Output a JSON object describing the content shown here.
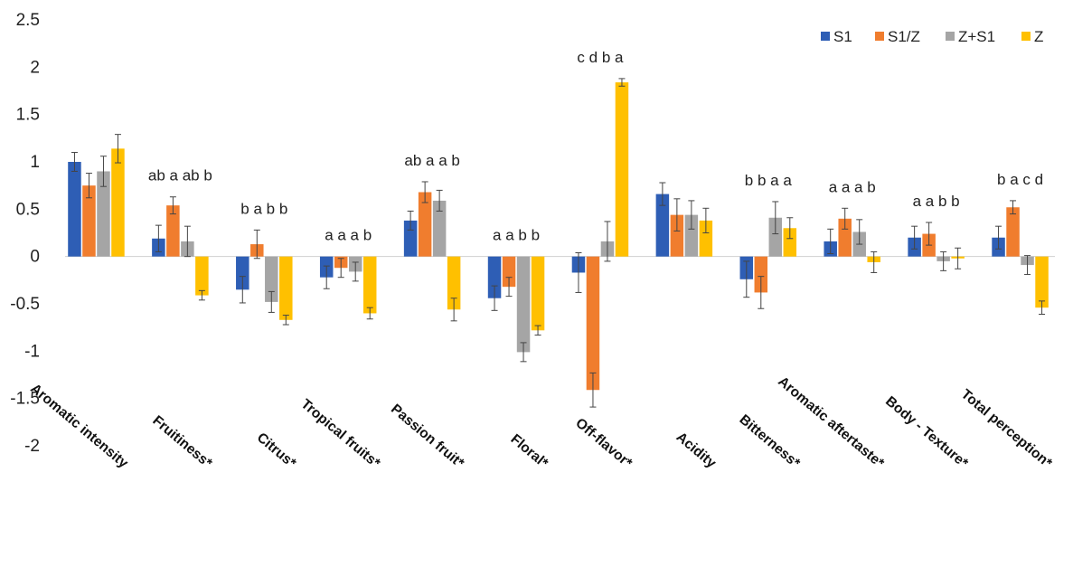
{
  "chart_data": {
    "type": "bar",
    "title": "",
    "xlabel": "",
    "ylabel": "",
    "ylim": [
      -2,
      2.5
    ],
    "yticks": [
      -2,
      -1.5,
      -1,
      -0.5,
      0,
      0.5,
      1,
      1.5,
      2,
      2.5
    ],
    "ytick_labels": [
      "-2",
      "-1.5",
      "-1",
      "-0.5",
      "0",
      "0.5",
      "1",
      "1.5",
      "2",
      "2.5"
    ],
    "grid": false,
    "legend_position": "top-right",
    "categories": [
      "Aromatic intensity",
      "Fruitiness*",
      "Citrus*",
      "Tropical fruits*",
      "Passion fruit*",
      "Floral*",
      "Off-flavor*",
      "Acidity",
      "Bitterness*",
      "Aromatic aftertaste*",
      "Body - Texture*",
      "Total perception*"
    ],
    "series": [
      {
        "name": "S1",
        "color": "#2E5EB5",
        "values": [
          1.0,
          0.19,
          -0.35,
          -0.22,
          0.38,
          -0.44,
          -0.17,
          0.66,
          -0.24,
          0.16,
          0.2,
          0.2
        ],
        "errors": [
          0.1,
          0.14,
          0.14,
          0.12,
          0.1,
          0.13,
          0.21,
          0.12,
          0.19,
          0.13,
          0.12,
          0.12
        ]
      },
      {
        "name": "S1/Z",
        "color": "#F07D2E",
        "values": [
          0.75,
          0.54,
          0.13,
          -0.12,
          0.68,
          -0.32,
          -1.41,
          0.44,
          -0.38,
          0.4,
          0.24,
          0.52
        ],
        "errors": [
          0.13,
          0.09,
          0.15,
          0.1,
          0.11,
          0.1,
          0.18,
          0.17,
          0.17,
          0.11,
          0.12,
          0.07
        ]
      },
      {
        "name": "Z+S1",
        "color": "#A5A5A5",
        "values": [
          0.9,
          0.16,
          -0.48,
          -0.16,
          0.59,
          -1.01,
          0.16,
          0.44,
          0.41,
          0.26,
          -0.05,
          -0.09
        ],
        "errors": [
          0.16,
          0.16,
          0.11,
          0.1,
          0.11,
          0.1,
          0.21,
          0.15,
          0.17,
          0.13,
          0.1,
          0.1
        ]
      },
      {
        "name": "Z",
        "color": "#FFC000",
        "values": [
          1.14,
          -0.41,
          -0.67,
          -0.6,
          -0.56,
          -0.78,
          1.84,
          0.38,
          0.3,
          -0.06,
          -0.02,
          -0.54
        ],
        "errors": [
          0.15,
          0.05,
          0.05,
          0.06,
          0.12,
          0.05,
          0.04,
          0.13,
          0.11,
          0.11,
          0.11,
          0.07
        ]
      }
    ],
    "annotations": [
      "",
      "ab a ab b",
      "b a b b",
      "a a a b",
      "ab a a b",
      "a a b b",
      "c d b a",
      "",
      "b b a a",
      "a a a b",
      "a a b b",
      "b a c d"
    ]
  }
}
